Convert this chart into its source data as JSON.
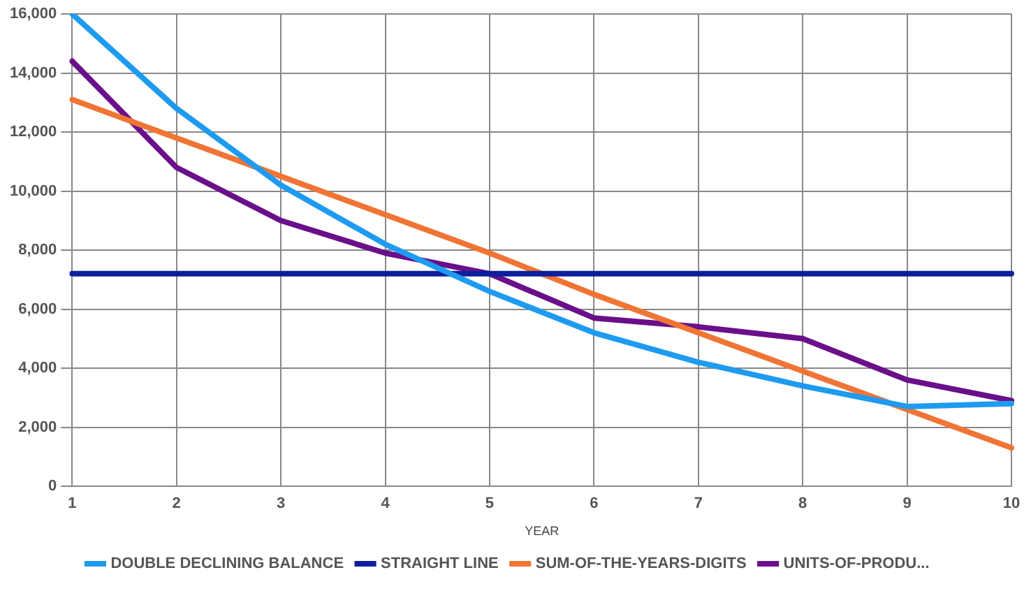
{
  "chart_data": {
    "type": "line",
    "xlabel": "YEAR",
    "categories": [
      "1",
      "2",
      "3",
      "4",
      "5",
      "6",
      "7",
      "8",
      "9",
      "10"
    ],
    "series": [
      {
        "name": "DOUBLE DECLINING BALANCE",
        "color": "#1e9bf0",
        "values": [
          16000,
          12800,
          10200,
          8200,
          6600,
          5200,
          4200,
          3400,
          2700,
          2800
        ]
      },
      {
        "name": "STRAIGHT LINE",
        "color": "#0d1f9c",
        "values": [
          7200,
          7200,
          7200,
          7200,
          7200,
          7200,
          7200,
          7200,
          7200,
          7200
        ]
      },
      {
        "name": "SUM-OF-THE-YEARS-DIGITS",
        "color": "#f07535",
        "values": [
          13100,
          11800,
          10500,
          9200,
          7900,
          6500,
          5200,
          3900,
          2600,
          1300
        ]
      },
      {
        "name": "UNITS-OF-PRODU...",
        "color": "#6a0f8a",
        "values": [
          14400,
          10800,
          9000,
          7900,
          7200,
          5700,
          5400,
          5000,
          3600,
          2900
        ]
      }
    ],
    "ylim": [
      0,
      16000
    ],
    "yticks": [
      0,
      {
        "value": 2000,
        "label": "2,000"
      },
      {
        "value": 4000,
        "label": "4,000"
      },
      {
        "value": 6000,
        "label": "6,000"
      },
      {
        "value": 8000,
        "label": "8,000"
      },
      {
        "value": 10000,
        "label": "10,000"
      },
      {
        "value": 12000,
        "label": "12,000"
      },
      {
        "value": 14000,
        "label": "14,000"
      },
      {
        "value": 16000,
        "label": "16,000"
      }
    ],
    "grid": true,
    "legend": "bottom",
    "marker": "none",
    "line_style": "solid"
  }
}
